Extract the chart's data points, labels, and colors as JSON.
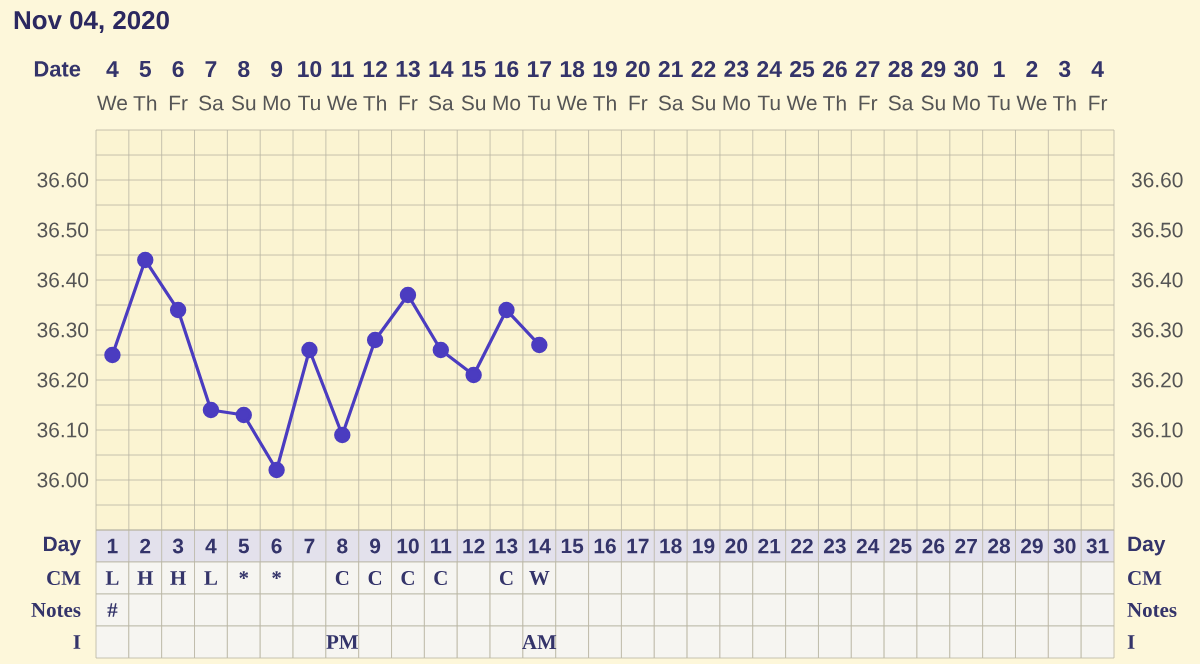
{
  "chart_data": [
    {
      "type": "heatmap",
      "categories": [
        "We",
        "Th",
        "Fr",
        "Sa",
        "Su",
        "Mo",
        "Tu",
        "We",
        "Th",
        "Fr",
        "Sa",
        "Su",
        "Mo",
        "Tu",
        "We",
        "Th",
        "Fr",
        "Sa",
        "Su",
        "Mo",
        "Tu",
        "We",
        "Th",
        "Fr",
        "Sa",
        "Su",
        "Mo",
        "Tu",
        "We",
        "Th",
        "Fr"
      ],
      "y_categories": [
        "Date"
      ],
      "cells": [
        [
          null,
          null,
          null,
          null,
          null,
          null,
          null,
          null,
          null,
          null,
          null,
          null,
          null,
          null,
          null,
          null,
          null,
          null,
          null,
          null,
          null,
          null,
          null,
          null,
          null,
          null,
          null,
          null,
          null,
          null,
          null
        ]
      ],
      "cell_labels": [
        [
          "4",
          "5",
          "6",
          "7",
          "8",
          "9",
          "10",
          "11",
          "12",
          "13",
          "14",
          "15",
          "16",
          "17",
          "18",
          "19",
          "20",
          "21",
          "22",
          "23",
          "24",
          "25",
          "26",
          "27",
          "28",
          "29",
          "30",
          "1",
          "2",
          "3",
          "4"
        ]
      ]
    },
    {
      "type": "line",
      "title": "Nov 04, 2020",
      "xlabel": "Day",
      "grid": true,
      "marker": "circle",
      "line_style": "solid",
      "categories": [
        "1",
        "2",
        "3",
        "4",
        "5",
        "6",
        "7",
        "8",
        "9",
        "10",
        "11",
        "12",
        "13",
        "14",
        "15",
        "16",
        "17",
        "18",
        "19",
        "20",
        "21",
        "22",
        "23",
        "24",
        "25",
        "26",
        "27",
        "28",
        "29",
        "30",
        "31"
      ],
      "series": [
        {
          "color": "#4b3cc0",
          "values": [
            36.25,
            36.44,
            36.34,
            36.14,
            36.13,
            36.02,
            36.26,
            36.09,
            36.28,
            36.37,
            36.26,
            36.21,
            36.34,
            36.27,
            null,
            null,
            null,
            null,
            null,
            null,
            null,
            null,
            null,
            null,
            null,
            null,
            null,
            null,
            null,
            null,
            null
          ]
        }
      ],
      "ylim": [
        35.9,
        36.7
      ],
      "yticks": [
        {
          "value": 35.95,
          "label": null
        },
        {
          "value": 36.0,
          "label": "36.00"
        },
        {
          "value": 36.05,
          "label": null
        },
        {
          "value": 36.1,
          "label": "36.10"
        },
        {
          "value": 36.15,
          "label": null
        },
        {
          "value": 36.2,
          "label": "36.20"
        },
        {
          "value": 36.25,
          "label": null
        },
        {
          "value": 36.3,
          "label": "36.30"
        },
        {
          "value": 36.35,
          "label": null
        },
        {
          "value": 36.4,
          "label": "36.40"
        },
        {
          "value": 36.45,
          "label": null
        },
        {
          "value": 36.5,
          "label": "36.50"
        },
        {
          "value": 36.55,
          "label": null
        },
        {
          "value": 36.6,
          "label": "36.60"
        },
        {
          "value": 36.65,
          "label": null
        }
      ],
      "y2lim": [
        35.9,
        36.7
      ],
      "y2ticks": [
        {
          "value": 36.0,
          "label": "36.00"
        },
        {
          "value": 36.1,
          "label": "36.10"
        },
        {
          "value": 36.2,
          "label": "36.20"
        },
        {
          "value": 36.3,
          "label": "36.30"
        },
        {
          "value": 36.4,
          "label": "36.40"
        },
        {
          "value": 36.5,
          "label": "36.50"
        },
        {
          "value": 36.6,
          "label": "36.60"
        }
      ]
    },
    {
      "type": "heatmap",
      "categories": [
        null,
        null,
        null,
        null,
        null,
        null,
        null,
        null,
        null,
        null,
        null,
        null,
        null,
        null,
        null,
        null,
        null,
        null,
        null,
        null,
        null,
        null,
        null,
        null,
        null,
        null,
        null,
        null,
        null,
        null,
        null
      ],
      "y_categories": [
        "CM",
        "Notes",
        "I"
      ],
      "y2_categories": [
        "CM",
        "Notes",
        "I"
      ],
      "cells": [
        [
          null,
          null,
          null,
          null,
          null,
          null,
          null,
          null,
          null,
          null,
          null,
          null,
          null,
          null,
          null,
          null,
          null,
          null,
          null,
          null,
          null,
          null,
          null,
          null,
          null,
          null,
          null,
          null,
          null,
          null,
          null
        ],
        [
          null,
          null,
          null,
          null,
          null,
          null,
          null,
          null,
          null,
          null,
          null,
          null,
          null,
          null,
          null,
          null,
          null,
          null,
          null,
          null,
          null,
          null,
          null,
          null,
          null,
          null,
          null,
          null,
          null,
          null,
          null
        ],
        [
          null,
          null,
          null,
          null,
          null,
          null,
          null,
          null,
          null,
          null,
          null,
          null,
          null,
          null,
          null,
          null,
          null,
          null,
          null,
          null,
          null,
          null,
          null,
          null,
          null,
          null,
          null,
          null,
          null,
          null,
          null
        ]
      ],
      "cell_labels": [
        [
          "L",
          "H",
          "H",
          "L",
          "*",
          "*",
          null,
          "C",
          "C",
          "C",
          "C",
          null,
          "C",
          "W",
          null,
          null,
          null,
          null,
          null,
          null,
          null,
          null,
          null,
          null,
          null,
          null,
          null,
          null,
          null,
          null,
          null
        ],
        [
          "#",
          null,
          null,
          null,
          null,
          null,
          null,
          null,
          null,
          null,
          null,
          null,
          null,
          null,
          null,
          null,
          null,
          null,
          null,
          null,
          null,
          null,
          null,
          null,
          null,
          null,
          null,
          null,
          null,
          null,
          null
        ],
        [
          null,
          null,
          null,
          null,
          null,
          null,
          null,
          "PM",
          null,
          null,
          null,
          null,
          null,
          "AM",
          null,
          null,
          null,
          null,
          null,
          null,
          null,
          null,
          null,
          null,
          null,
          null,
          null,
          null,
          null,
          null,
          null
        ]
      ]
    }
  ]
}
